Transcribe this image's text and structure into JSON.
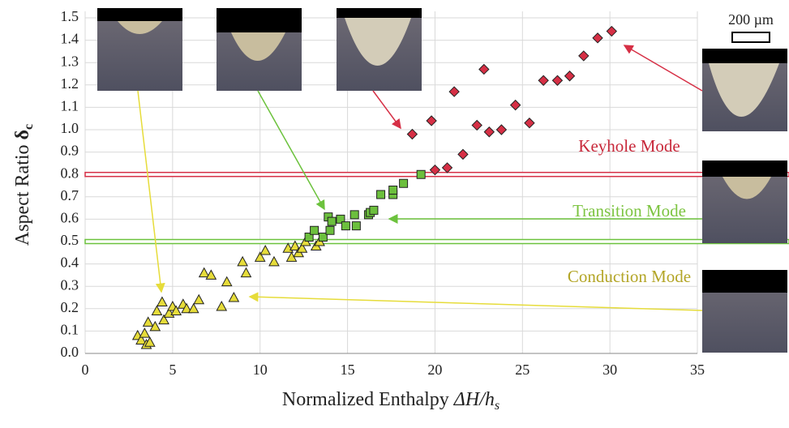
{
  "chart_data": {
    "type": "scatter",
    "x_label": "Normalized Enthalpy ",
    "x_label_italic": "ΔH/h",
    "x_label_subscript": "s",
    "y_label": "Aspect Ratio ",
    "y_label_symbol": "δ",
    "y_label_subscript": "c",
    "xlim": [
      0,
      35
    ],
    "ylim": [
      0,
      1.5
    ],
    "xticks": [
      0,
      5,
      10,
      15,
      20,
      25,
      30,
      35
    ],
    "yticks": [
      {
        "value": 0,
        "label": "0.0"
      },
      0.1,
      0.2,
      0.3,
      0.4,
      0.5,
      0.6,
      0.7,
      0.8,
      0.9,
      {
        "value": 1,
        "label": "1.0"
      },
      1.1,
      1.2,
      1.3,
      1.4,
      1.5
    ],
    "grid": true,
    "series": [
      {
        "name": "Conduction",
        "marker": "triangle",
        "color": "#e6dc3a",
        "x": [
          3.0,
          3.2,
          3.4,
          3.5,
          3.7,
          3.6,
          4.0,
          4.1,
          4.4,
          4.5,
          4.8,
          5.0,
          5.2,
          5.6,
          5.8,
          6.2,
          6.5,
          6.8,
          7.2,
          7.8,
          8.1,
          8.5,
          9.0,
          9.2,
          10.0,
          10.3,
          10.8,
          11.6,
          11.8,
          12.0,
          12.2,
          12.4,
          12.6,
          13.2,
          13.4
        ],
        "values": [
          0.08,
          0.06,
          0.09,
          0.04,
          0.05,
          0.14,
          0.12,
          0.19,
          0.23,
          0.15,
          0.18,
          0.21,
          0.19,
          0.22,
          0.2,
          0.2,
          0.24,
          0.36,
          0.35,
          0.21,
          0.32,
          0.25,
          0.41,
          0.36,
          0.43,
          0.46,
          0.41,
          0.47,
          0.43,
          0.48,
          0.45,
          0.47,
          0.5,
          0.48,
          0.5
        ]
      },
      {
        "name": "Transition",
        "marker": "square",
        "color": "#6cbf3d",
        "x": [
          12.8,
          13.1,
          13.6,
          13.9,
          14.0,
          14.1,
          14.6,
          14.9,
          15.4,
          15.5,
          16.2,
          16.3,
          16.5,
          16.9,
          17.6,
          17.6,
          18.2,
          19.2
        ],
        "values": [
          0.52,
          0.55,
          0.52,
          0.61,
          0.55,
          0.59,
          0.6,
          0.57,
          0.62,
          0.57,
          0.62,
          0.63,
          0.64,
          0.71,
          0.71,
          0.73,
          0.76,
          0.8
        ]
      },
      {
        "name": "Keyhole",
        "marker": "diamond",
        "color": "#d62f45",
        "x": [
          18.7,
          19.8,
          20.0,
          20.7,
          21.1,
          21.6,
          22.4,
          22.8,
          23.1,
          23.8,
          24.6,
          25.4,
          26.2,
          27.0,
          27.7,
          28.5,
          29.3,
          30.1
        ],
        "values": [
          0.98,
          1.04,
          0.82,
          0.83,
          1.17,
          0.89,
          1.02,
          1.27,
          0.99,
          1.0,
          1.11,
          1.03,
          1.22,
          1.22,
          1.24,
          1.33,
          1.41,
          1.44
        ]
      }
    ],
    "mode_lines": [
      {
        "value": 0.8,
        "color": "#d62f45"
      },
      {
        "value": 0.5,
        "color": "#6cc23d"
      }
    ],
    "annotations": [
      {
        "text": "Keyhole Mode",
        "color": "#c8283a"
      },
      {
        "text": "Transition Mode",
        "color": "#7cc440"
      },
      {
        "text": "Conduction Mode",
        "color": "#b3a526"
      }
    ],
    "scale_bar": "200 µm"
  }
}
